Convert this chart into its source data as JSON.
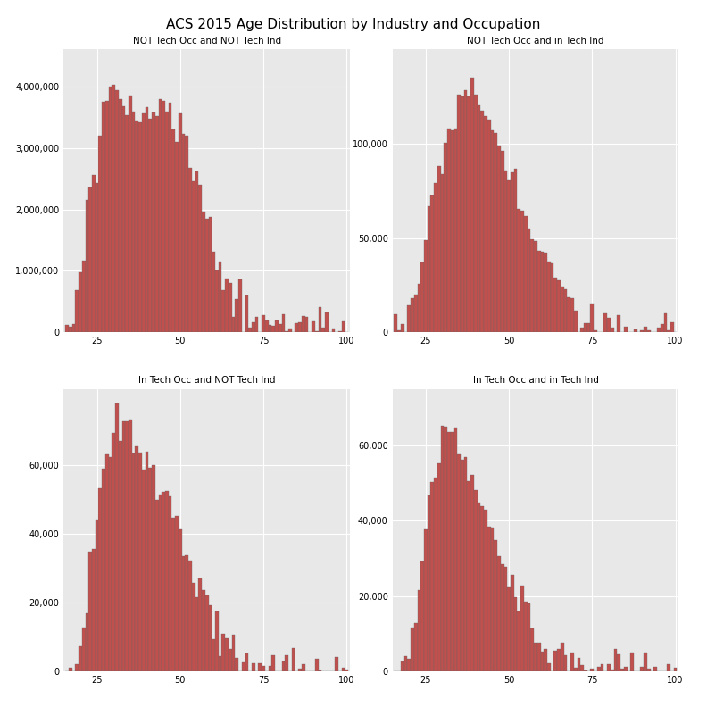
{
  "title": "ACS 2015 Age Distribution by Industry and Occupation",
  "panels": [
    {
      "label": "NOT Tech Occ and NOT Tech Ind",
      "ylim": [
        0,
        4600000
      ],
      "yticks": [
        0,
        1000000,
        2000000,
        3000000,
        4000000
      ],
      "ytick_labels": [
        "0",
        "1,000,000",
        "2,000,000",
        "3,000,000",
        "4,000,000"
      ]
    },
    {
      "label": "NOT Tech Occ and in Tech Ind",
      "ylim": [
        0,
        150000
      ],
      "yticks": [
        0,
        50000,
        100000
      ],
      "ytick_labels": [
        "0",
        "50,000",
        "100,000"
      ]
    },
    {
      "label": "In Tech Occ and NOT Tech Ind",
      "ylim": [
        0,
        82000
      ],
      "yticks": [
        0,
        20000,
        40000,
        60000
      ],
      "ytick_labels": [
        "0",
        "20,000",
        "40,000",
        "60,000"
      ]
    },
    {
      "label": "In Tech Occ and in Tech Ind",
      "ylim": [
        0,
        75000
      ],
      "yticks": [
        0,
        20000,
        40000,
        60000
      ],
      "ytick_labels": [
        "0",
        "20,000",
        "40,000",
        "60,000"
      ]
    }
  ],
  "bar_color": "#c0504d",
  "bar_edge_color": "#666666",
  "panel_background": "#e8e8e8",
  "strip_background": "#c8c8c8",
  "figure_background": "#ffffff",
  "grid_color": "#ffffff",
  "title_fontsize": 11,
  "strip_fontsize": 7.5,
  "tick_fontsize": 7,
  "xlim": [
    15,
    101
  ],
  "xticks": [
    25,
    50,
    75,
    100
  ]
}
